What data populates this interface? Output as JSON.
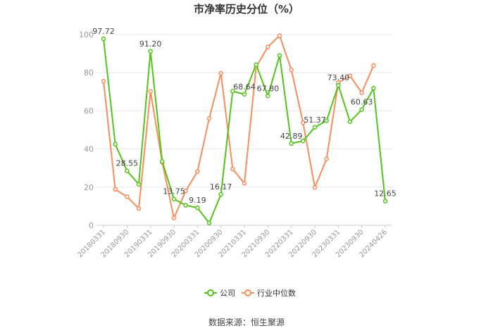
{
  "chart_data": {
    "type": "line",
    "title": "市净率历史分位（%）",
    "source": "数据来源：恒生聚源",
    "ylim": [
      0,
      100
    ],
    "yticks": [
      0,
      20,
      40,
      60,
      80,
      100
    ],
    "grid": true,
    "legend_position": "bottom",
    "x_tick_labels": [
      "20180331",
      "20180930",
      "20190331",
      "20190930",
      "20200331",
      "20200930",
      "20210331",
      "20210930",
      "20220331",
      "20220930",
      "20230331",
      "20230930",
      "20240426"
    ],
    "series": [
      {
        "name": "公司",
        "color": "#52c41a",
        "values": [
          97.72,
          42.5,
          28.55,
          21.5,
          91.2,
          33.5,
          13.75,
          10.5,
          9.19,
          1.2,
          16.17,
          70.3,
          68.64,
          84.2,
          67.8,
          89.0,
          42.89,
          44.2,
          51.37,
          54.8,
          73.4,
          54.3,
          60.63,
          71.8,
          12.65
        ]
      },
      {
        "name": "行业中位数",
        "color": "#fa8c5a",
        "values": [
          75.5,
          18.8,
          15.0,
          8.8,
          70.2,
          33.0,
          3.8,
          18.0,
          28.2,
          56.0,
          79.7,
          29.5,
          22.0,
          83.0,
          93.5,
          99.4,
          81.5,
          53.8,
          19.8,
          34.8,
          74.8,
          78.3,
          69.5,
          83.7,
          null
        ]
      }
    ],
    "data_labels": [
      {
        "series": 0,
        "index": 0,
        "text": "97.72"
      },
      {
        "series": 0,
        "index": 2,
        "text": "28.55"
      },
      {
        "series": 0,
        "index": 4,
        "text": "91.20"
      },
      {
        "series": 0,
        "index": 6,
        "text": "13.75"
      },
      {
        "series": 0,
        "index": 8,
        "text": "9.19"
      },
      {
        "series": 0,
        "index": 10,
        "text": "16.17"
      },
      {
        "series": 0,
        "index": 12,
        "text": "68.64"
      },
      {
        "series": 0,
        "index": 14,
        "text": "67.80"
      },
      {
        "series": 0,
        "index": 16,
        "text": "42.89"
      },
      {
        "series": 0,
        "index": 18,
        "text": "51.37"
      },
      {
        "series": 0,
        "index": 20,
        "text": "73.40"
      },
      {
        "series": 0,
        "index": 22,
        "text": "60.63"
      },
      {
        "series": 0,
        "index": 24,
        "text": "12.65"
      }
    ]
  }
}
